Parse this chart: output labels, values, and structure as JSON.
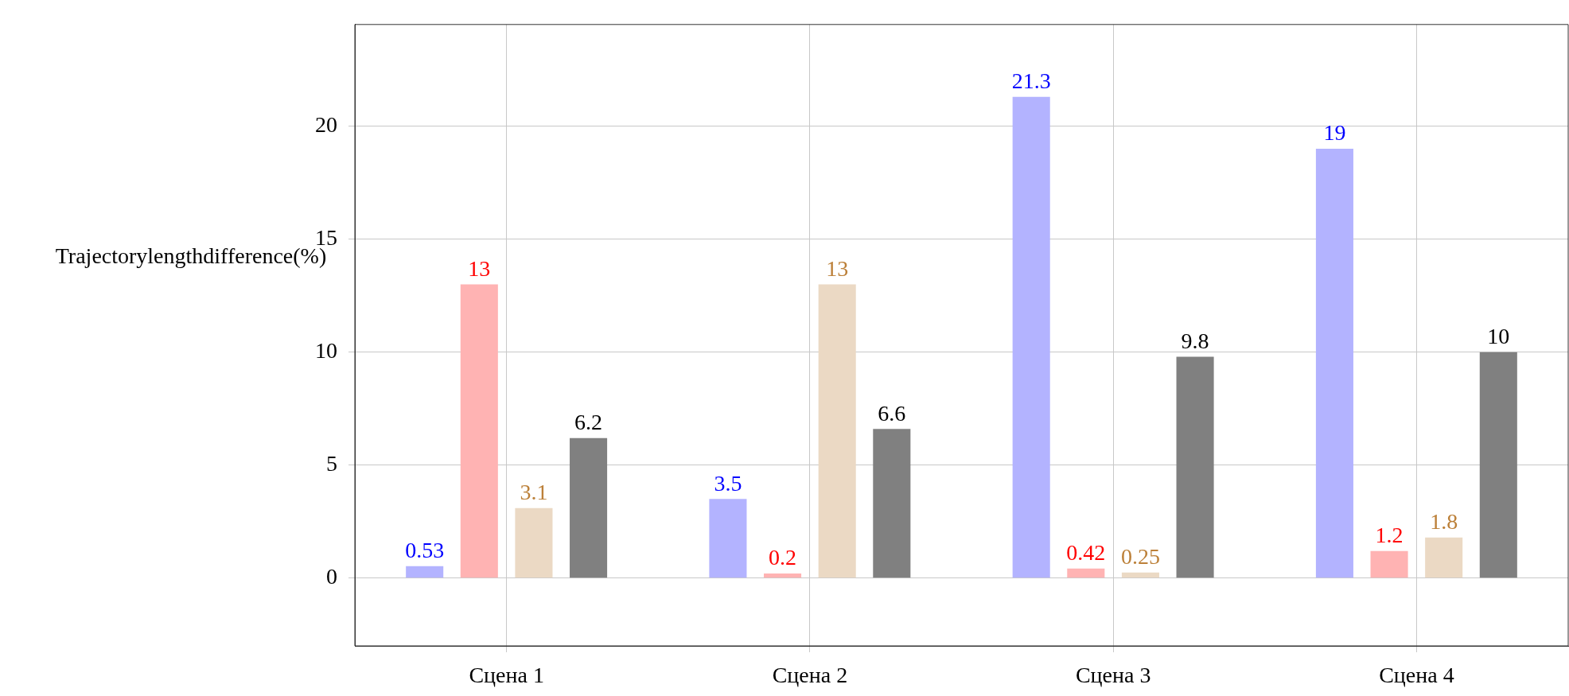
{
  "chart_data": {
    "type": "bar",
    "ylabel": "Trajectorylengthdifference(%)",
    "categories": [
      "Сцена 1",
      "Сцена 2",
      "Сцена 3",
      "Сцена 4"
    ],
    "series": [
      {
        "color": "#b3b3ff",
        "values": [
          0.53,
          3.5,
          21.3,
          19
        ]
      },
      {
        "color": "#ffb3b3",
        "values": [
          13,
          0.2,
          0.42,
          1.2
        ]
      },
      {
        "color": "#ebd9c4",
        "values": [
          3.1,
          13,
          0.25,
          1.8
        ]
      },
      {
        "color": "#808080",
        "values": [
          6.2,
          6.6,
          9.8,
          10
        ]
      }
    ],
    "ylim": [
      -3,
      24.5
    ],
    "yticks": [
      0,
      5,
      10,
      15,
      20
    ],
    "grid": true,
    "legend": false,
    "data_labels": true
  }
}
